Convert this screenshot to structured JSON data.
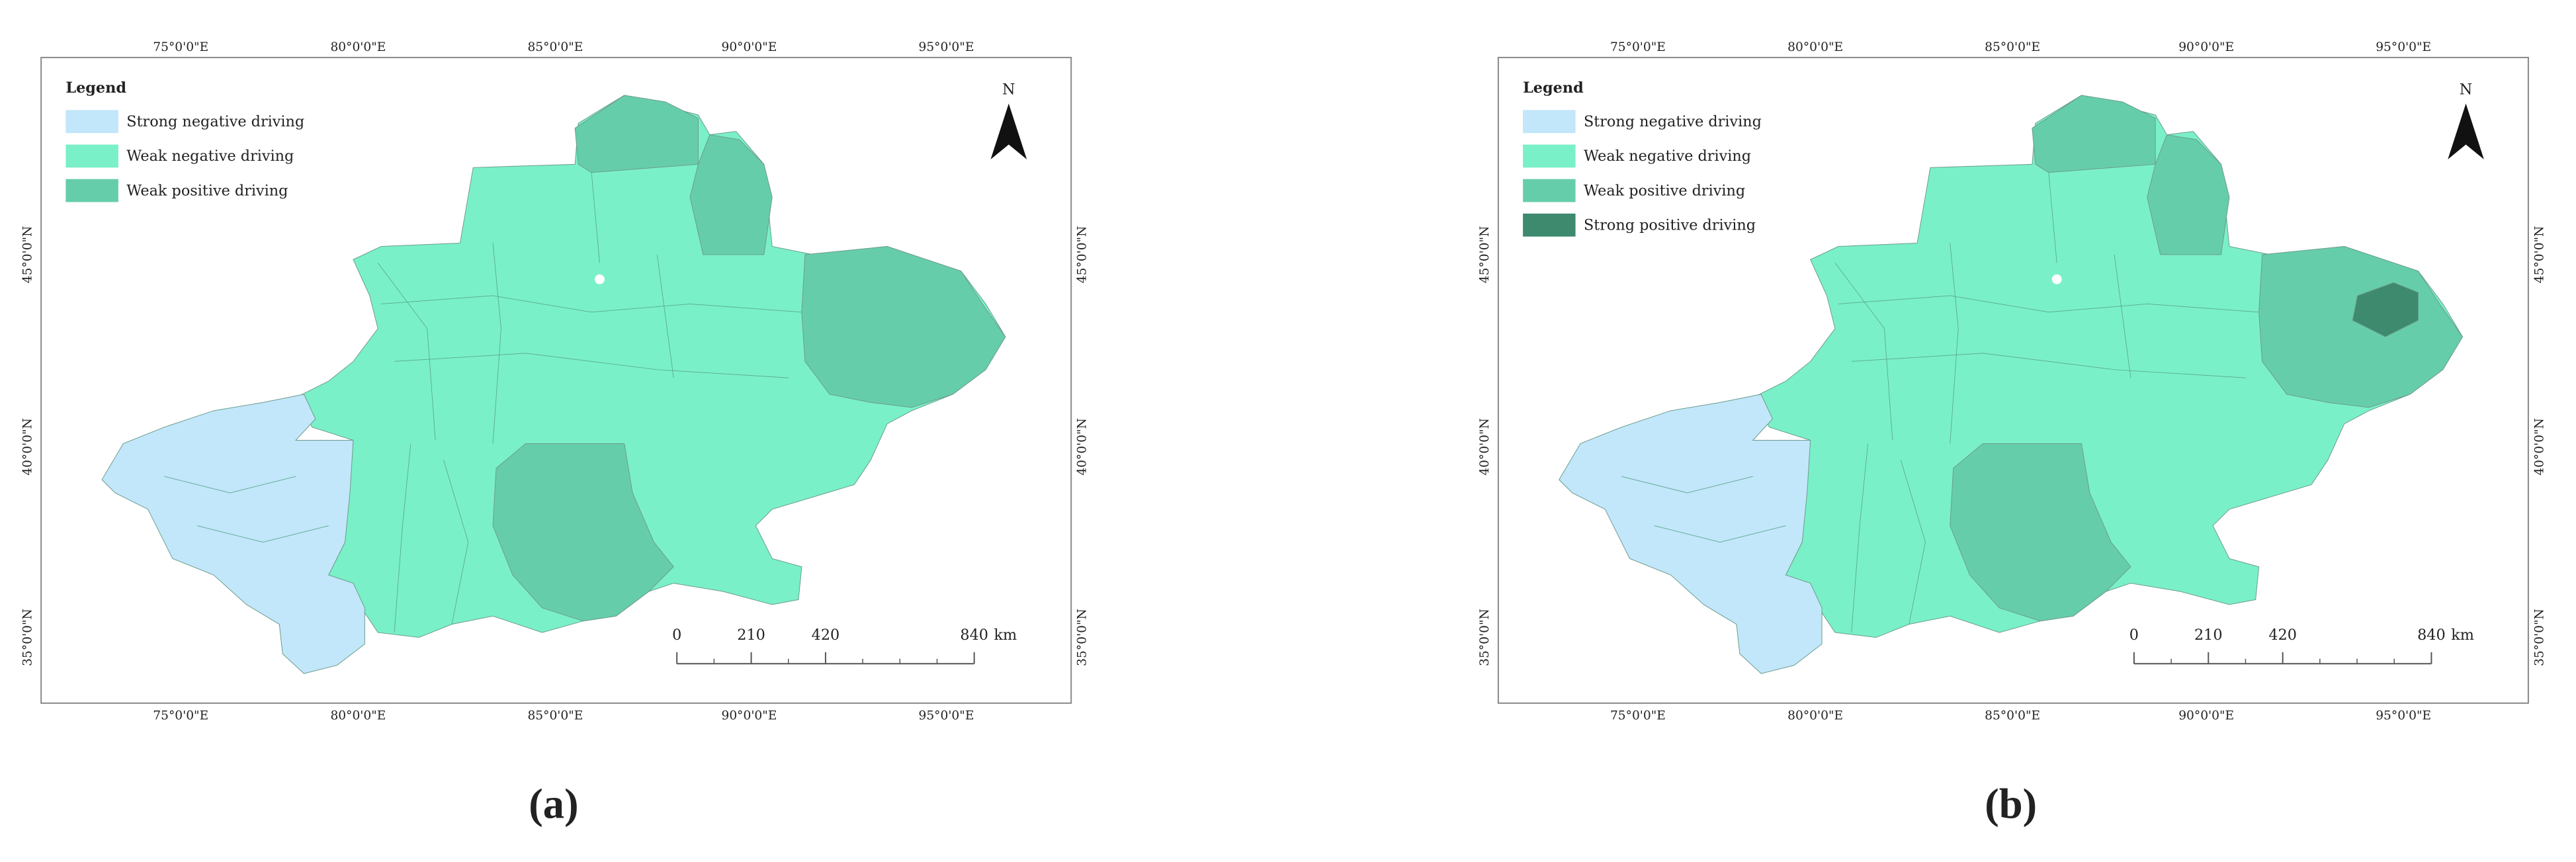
{
  "panels": [
    {
      "label": "(a)",
      "legend": {
        "title": "Legend",
        "items": [
          {
            "name": "Strong negative driving",
            "color": "#c2e6fa"
          },
          {
            "name": "Weak negative driving",
            "color": "#7af0c8"
          },
          {
            "name": "Weak positive driving",
            "color": "#66cdaa"
          }
        ]
      },
      "longitude_labels": [
        "75°0'0\"E",
        "80°0'0\"E",
        "85°0'0\"E",
        "90°0'0\"E",
        "95°0'0\"E"
      ],
      "latitude_labels": [
        "45°0'0\"N",
        "40°0'0\"N",
        "35°0'0\"N"
      ],
      "scale_bar": {
        "ticks": [
          0,
          210,
          420,
          840
        ],
        "unit": "km"
      },
      "north": "N"
    },
    {
      "label": "(b)",
      "legend": {
        "title": "Legend",
        "items": [
          {
            "name": "Strong negative driving",
            "color": "#c2e6fa"
          },
          {
            "name": "Weak negative driving",
            "color": "#7af0c8"
          },
          {
            "name": "Weak positive driving",
            "color": "#66cdaa"
          },
          {
            "name": "Strong positive driving",
            "color": "#3e8a6e"
          }
        ]
      },
      "longitude_labels": [
        "75°0'0\"E",
        "80°0'0\"E",
        "85°0'0\"E",
        "90°0'0\"E",
        "95°0'0\"E"
      ],
      "latitude_labels": [
        "45°0'0\"N",
        "40°0'0\"N",
        "35°0'0\"N"
      ],
      "scale_bar": {
        "ticks": [
          0,
          210,
          420,
          840
        ],
        "unit": "km"
      },
      "north": "N"
    }
  ]
}
